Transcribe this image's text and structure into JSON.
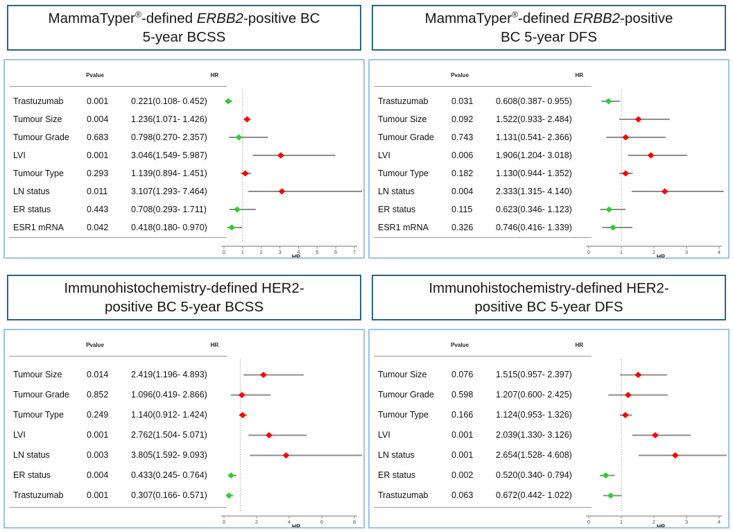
{
  "colors": {
    "title_border": "#2a6384",
    "panel_border": "#9dc3e6",
    "risk_marker": "#ff0000",
    "protective_marker": "#33cc33",
    "ci_line": "#8c8c8c",
    "axis_line": "#8c8c8c",
    "ref_line": "#b3b3b3",
    "table_rule": "#999999"
  },
  "column_headers": {
    "pvalue": "Pvalue",
    "hr": "HR"
  },
  "chart_data": [
    {
      "type": "forest",
      "name": "mammatyper-bcss",
      "title": "MammaTyper®-defined ERBB2-positive BC 5-year BCSS",
      "title_lines": [
        [
          {
            "text": "MammaTyper"
          },
          {
            "text": "®",
            "sup": true
          },
          {
            "text": "-defined "
          },
          {
            "text": "ERBB2",
            "italic": true
          },
          {
            "text": "-positive BC"
          }
        ],
        [
          {
            "text": "5-year BCSS"
          }
        ]
      ],
      "xlabel": "HR",
      "xlim": [
        0,
        7
      ],
      "ticks": [
        0,
        1,
        2,
        3,
        4,
        5,
        6,
        7
      ],
      "ref_line": 1,
      "rows": [
        {
          "label": "Trastuzumab",
          "pvalue": "0.001",
          "hr_text": "0.221(0.108- 0.452)",
          "hr": 0.221,
          "ci_low": 0.108,
          "ci_high": 0.452
        },
        {
          "label": "Tumour Size",
          "pvalue": "0.004",
          "hr_text": "1.236(1.071- 1.426)",
          "hr": 1.236,
          "ci_low": 1.071,
          "ci_high": 1.426
        },
        {
          "label": "Tumour Grade",
          "pvalue": "0.683",
          "hr_text": "0.798(0.270- 2.357)",
          "hr": 0.798,
          "ci_low": 0.27,
          "ci_high": 2.357
        },
        {
          "label": "LVI",
          "pvalue": "0.001",
          "hr_text": "3.046(1.549- 5.987)",
          "hr": 3.046,
          "ci_low": 1.549,
          "ci_high": 5.987
        },
        {
          "label": "Tumour Type",
          "pvalue": "0.293",
          "hr_text": "1.139(0.894- 1.451)",
          "hr": 1.139,
          "ci_low": 0.894,
          "ci_high": 1.451
        },
        {
          "label": "LN status",
          "pvalue": "0.011",
          "hr_text": "3.107(1.293- 7.464)",
          "hr": 3.107,
          "ci_low": 1.293,
          "ci_high": 7.464
        },
        {
          "label": "ER status",
          "pvalue": "0.443",
          "hr_text": "0.708(0.293- 1.711)",
          "hr": 0.708,
          "ci_low": 0.293,
          "ci_high": 1.711
        },
        {
          "label": "ESR1 mRNA",
          "pvalue": "0.042",
          "hr_text": "0.418(0.180- 0.970)",
          "hr": 0.418,
          "ci_low": 0.18,
          "ci_high": 0.97
        }
      ]
    },
    {
      "type": "forest",
      "name": "mammatyper-dfs",
      "title": "MammaTyper®-defined ERBB2-positive BC 5-year DFS",
      "title_lines": [
        [
          {
            "text": "MammaTyper"
          },
          {
            "text": "®",
            "sup": true
          },
          {
            "text": "-defined "
          },
          {
            "text": "ERBB2",
            "italic": true
          },
          {
            "text": "-positive"
          }
        ],
        [
          {
            "text": "BC 5-year DFS"
          }
        ]
      ],
      "xlabel": "HR",
      "xlim": [
        0,
        4
      ],
      "ticks": [
        0,
        1,
        2,
        3,
        4
      ],
      "ref_line": 1,
      "rows": [
        {
          "label": "Trastuzumab",
          "pvalue": "0.031",
          "hr_text": "0.608(0.387- 0.955)",
          "hr": 0.608,
          "ci_low": 0.387,
          "ci_high": 0.955
        },
        {
          "label": "Tumour Size",
          "pvalue": "0.092",
          "hr_text": "1.522(0.933- 2.484)",
          "hr": 1.522,
          "ci_low": 0.933,
          "ci_high": 2.484
        },
        {
          "label": "Tumour Grade",
          "pvalue": "0.743",
          "hr_text": "1.131(0.541- 2.366)",
          "hr": 1.131,
          "ci_low": 0.541,
          "ci_high": 2.366
        },
        {
          "label": "LVI",
          "pvalue": "0.006",
          "hr_text": "1.906(1.204- 3.018)",
          "hr": 1.906,
          "ci_low": 1.204,
          "ci_high": 3.018
        },
        {
          "label": "Tumour Type",
          "pvalue": "0.182",
          "hr_text": "1.130(0.944- 1.352)",
          "hr": 1.13,
          "ci_low": 0.944,
          "ci_high": 1.352
        },
        {
          "label": "LN status",
          "pvalue": "0.004",
          "hr_text": "2.333(1.315- 4.140)",
          "hr": 2.333,
          "ci_low": 1.315,
          "ci_high": 4.14
        },
        {
          "label": "ER status",
          "pvalue": "0.115",
          "hr_text": "0.623(0.346- 1.123)",
          "hr": 0.623,
          "ci_low": 0.346,
          "ci_high": 1.123
        },
        {
          "label": "ESR1 mRNA",
          "pvalue": "0.326",
          "hr_text": "0.746(0.416- 1.339)",
          "hr": 0.746,
          "ci_low": 0.416,
          "ci_high": 1.339
        }
      ]
    },
    {
      "type": "forest",
      "name": "ihc-bcss",
      "title": "Immunohistochemistry-defined HER2-positive BC 5-year BCSS",
      "title_lines": [
        [
          {
            "text": "Immunohistochemistry-defined HER2-"
          }
        ],
        [
          {
            "text": "positive BC 5-year BCSS"
          }
        ]
      ],
      "xlabel": "HR",
      "xlim": [
        0,
        8
      ],
      "ticks": [
        0,
        2,
        4,
        6,
        8
      ],
      "ref_line": 1,
      "rows": [
        {
          "label": "Tumour Size",
          "pvalue": "0.014",
          "hr_text": "2.419(1.196- 4.893)",
          "hr": 2.419,
          "ci_low": 1.196,
          "ci_high": 4.893
        },
        {
          "label": "Tumour Grade",
          "pvalue": "0.852",
          "hr_text": "1.096(0.419- 2.866)",
          "hr": 1.096,
          "ci_low": 0.419,
          "ci_high": 2.866
        },
        {
          "label": "Tumour Type",
          "pvalue": "0.249",
          "hr_text": "1.140(0.912- 1.424)",
          "hr": 1.14,
          "ci_low": 0.912,
          "ci_high": 1.424
        },
        {
          "label": "LVI",
          "pvalue": "0.001",
          "hr_text": "2.762(1.504- 5.071)",
          "hr": 2.762,
          "ci_low": 1.504,
          "ci_high": 5.071
        },
        {
          "label": "LN status",
          "pvalue": "0.003",
          "hr_text": "3.805(1.592- 9.093)",
          "hr": 3.805,
          "ci_low": 1.592,
          "ci_high": 9.093
        },
        {
          "label": "ER status",
          "pvalue": "0.004",
          "hr_text": "0.433(0.245- 0.764)",
          "hr": 0.433,
          "ci_low": 0.245,
          "ci_high": 0.764
        },
        {
          "label": "Trastuzumab",
          "pvalue": "0.001",
          "hr_text": "0.307(0.166- 0.571)",
          "hr": 0.307,
          "ci_low": 0.166,
          "ci_high": 0.571
        }
      ]
    },
    {
      "type": "forest",
      "name": "ihc-dfs",
      "title": "Immunohistochemistry-defined HER2-positive BC 5-year DFS",
      "title_lines": [
        [
          {
            "text": "Immunohistochemistry-defined HER2-"
          }
        ],
        [
          {
            "text": "positive BC 5-year DFS"
          }
        ]
      ],
      "xlabel": "HR",
      "xlim": [
        0,
        4
      ],
      "ticks": [
        0,
        1,
        2,
        3,
        4
      ],
      "ref_line": 1,
      "rows": [
        {
          "label": "Tumour Size",
          "pvalue": "0.076",
          "hr_text": "1.515(0.957- 2.397)",
          "hr": 1.515,
          "ci_low": 0.957,
          "ci_high": 2.397
        },
        {
          "label": "Tumour Grade",
          "pvalue": "0.598",
          "hr_text": "1.207(0.600- 2.425)",
          "hr": 1.207,
          "ci_low": 0.6,
          "ci_high": 2.425
        },
        {
          "label": "Tumour Type",
          "pvalue": "0.166",
          "hr_text": "1.124(0.953- 1.326)",
          "hr": 1.124,
          "ci_low": 0.953,
          "ci_high": 1.326
        },
        {
          "label": "LVI",
          "pvalue": "0.001",
          "hr_text": "2.039(1.330- 3.126)",
          "hr": 2.039,
          "ci_low": 1.33,
          "ci_high": 3.126
        },
        {
          "label": "LN status",
          "pvalue": "0.001",
          "hr_text": "2.654(1.528- 4.608)",
          "hr": 2.654,
          "ci_low": 1.528,
          "ci_high": 4.608
        },
        {
          "label": "ER status",
          "pvalue": "0.002",
          "hr_text": "0.520(0.340- 0.794)",
          "hr": 0.52,
          "ci_low": 0.34,
          "ci_high": 0.794
        },
        {
          "label": "Trastuzumab",
          "pvalue": "0.063",
          "hr_text": "0.672(0.442- 1.022)",
          "hr": 0.672,
          "ci_low": 0.442,
          "ci_high": 1.022
        }
      ]
    }
  ]
}
